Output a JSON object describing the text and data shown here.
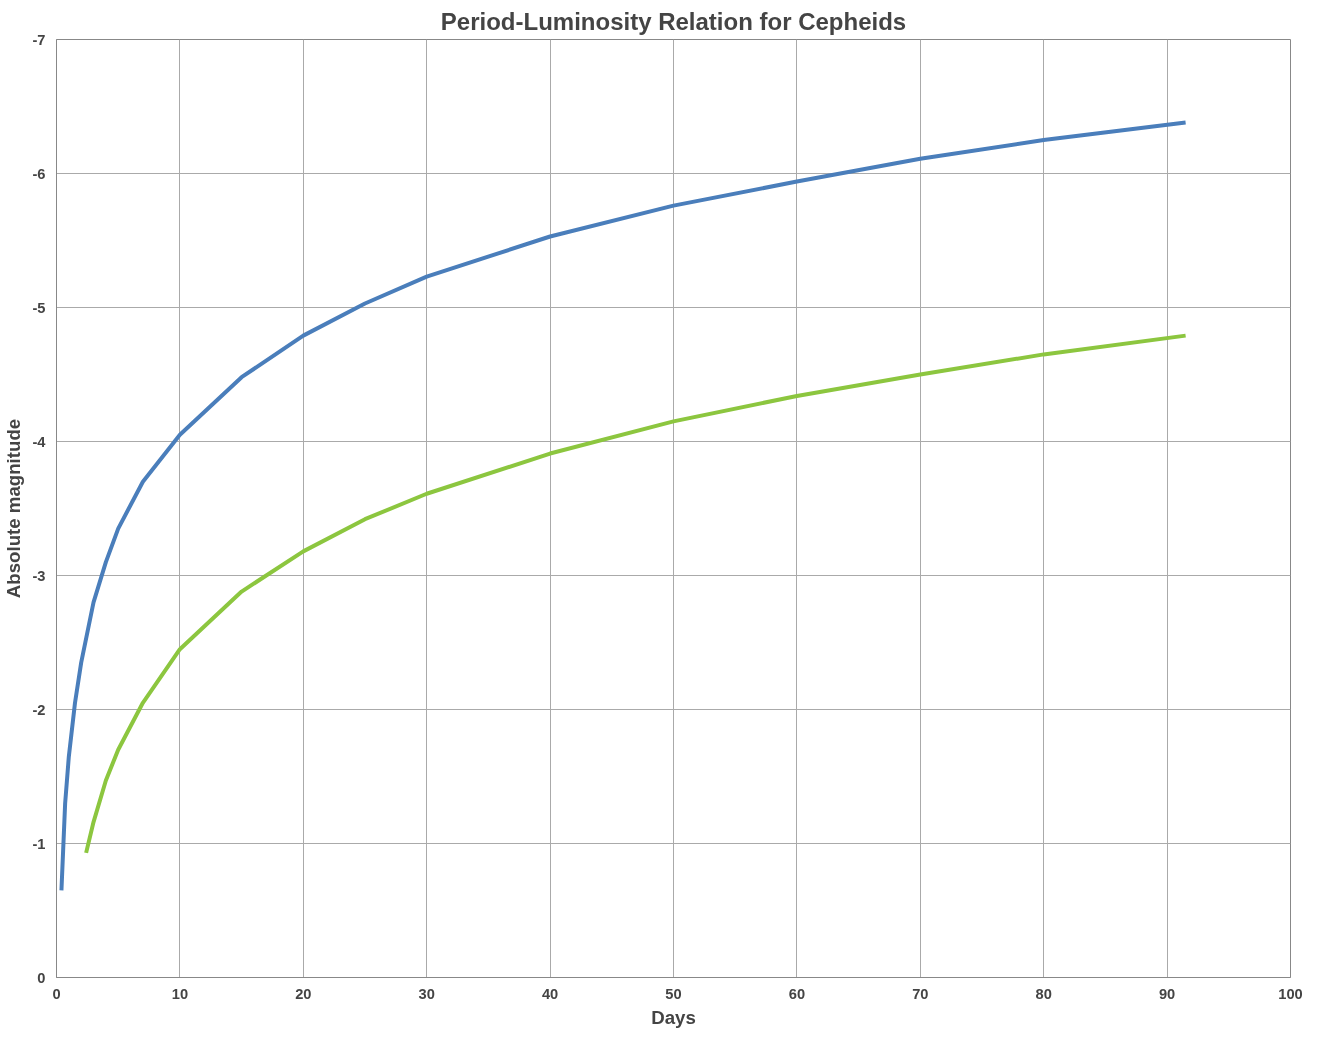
{
  "chart_data": {
    "type": "line",
    "title": "Period-Luminosity Relation for Cepheids",
    "xlabel": "Days",
    "ylabel": "Absolute magnitude",
    "series": [
      {
        "color": "#4a7ebb",
        "x": [
          0.4,
          0.7,
          1,
          1.5,
          2,
          3,
          4,
          5,
          7,
          10,
          15,
          20,
          25,
          30,
          40,
          50,
          60,
          70,
          80,
          91.5
        ],
        "values": [
          -0.65,
          -1.3,
          -1.65,
          -2.05,
          -2.35,
          -2.8,
          -3.1,
          -3.35,
          -3.7,
          -4.05,
          -4.48,
          -4.79,
          -5.03,
          -5.23,
          -5.53,
          -5.76,
          -5.94,
          -6.11,
          -6.25,
          -6.38
        ]
      },
      {
        "color": "#8cc63f",
        "x": [
          2.4,
          3,
          4,
          5,
          7,
          10,
          15,
          20,
          25,
          30,
          40,
          50,
          60,
          70,
          80,
          91.5
        ],
        "values": [
          -0.93,
          -1.16,
          -1.47,
          -1.7,
          -2.05,
          -2.45,
          -2.88,
          -3.18,
          -3.42,
          -3.61,
          -3.91,
          -4.15,
          -4.34,
          -4.5,
          -4.65,
          -4.79
        ]
      }
    ],
    "xlim": [
      0,
      100
    ],
    "xticks": [
      0,
      10,
      20,
      30,
      40,
      50,
      60,
      70,
      80,
      90,
      100
    ],
    "ylim": [
      0,
      -7
    ],
    "yticks": [
      0,
      -1,
      -2,
      -3,
      -4,
      -5,
      -6,
      -7
    ],
    "grid": true,
    "marker": "none",
    "line_style": "solid"
  }
}
